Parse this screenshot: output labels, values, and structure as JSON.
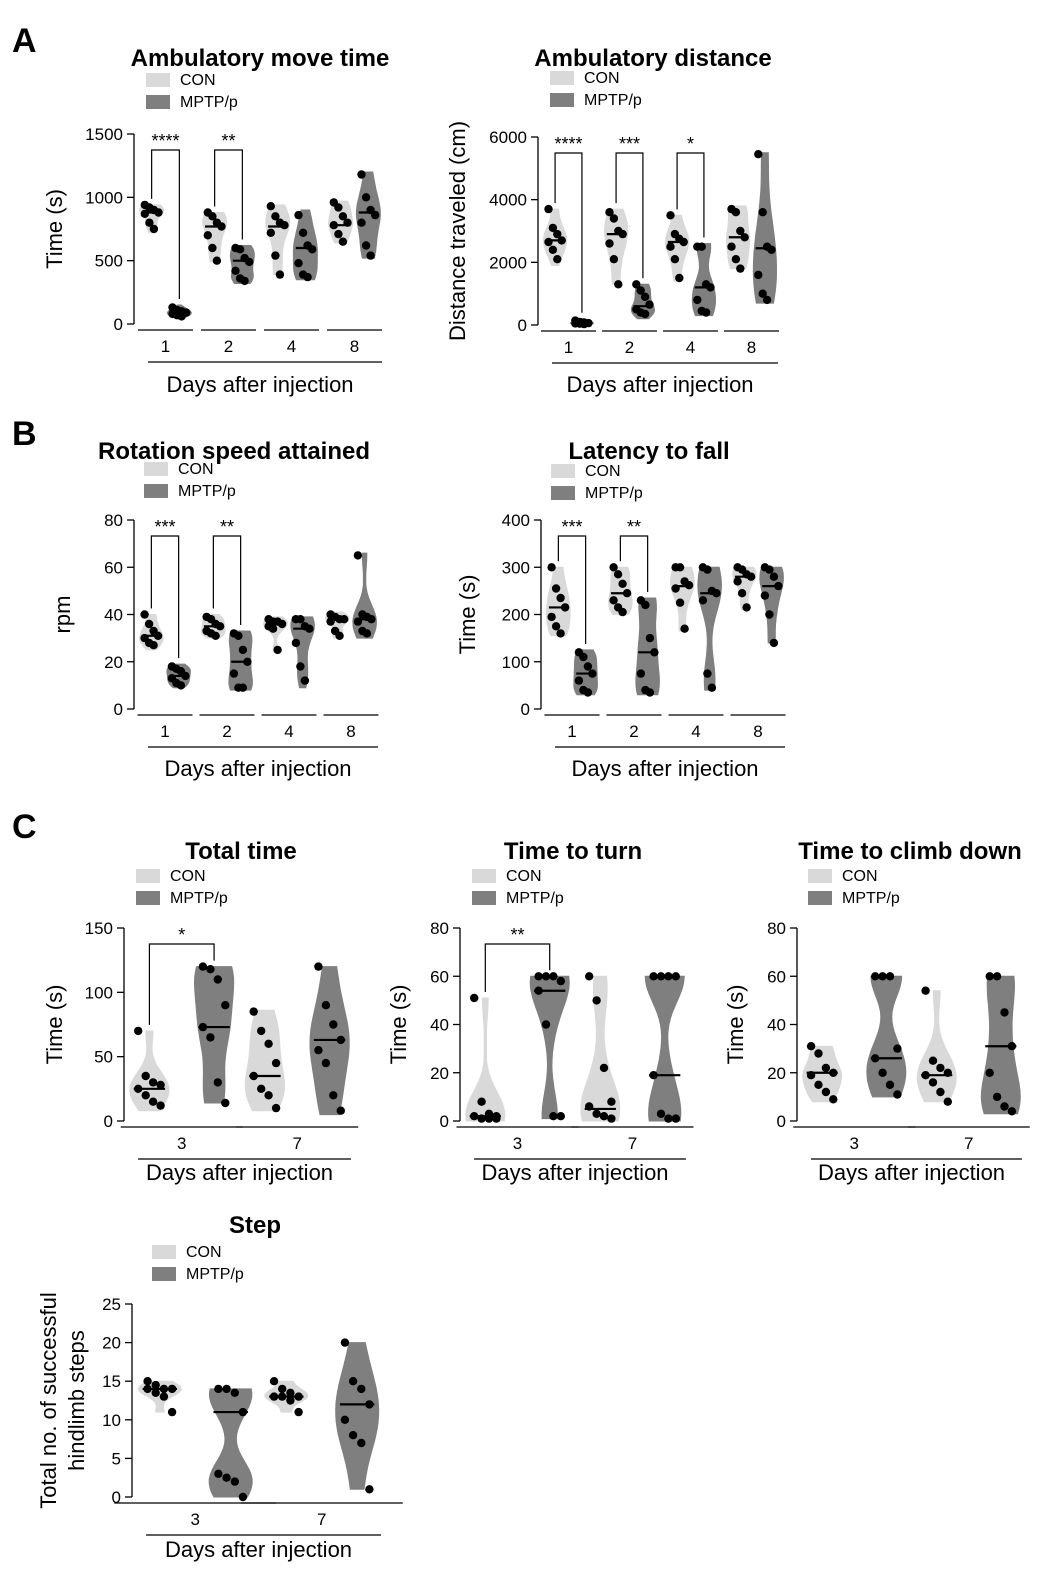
{
  "panel_labels": [
    "A",
    "B",
    "C"
  ],
  "chart_data": [
    {
      "type": "violin",
      "panel": "A",
      "title": "Ambulatory move time",
      "ylabel": "Time (s)",
      "xlabel": "Days after injection",
      "categories": [
        "1",
        "2",
        "4",
        "8"
      ],
      "ylim": [
        0,
        1500
      ],
      "yticks": [
        0,
        500,
        1000,
        1500
      ],
      "legend": [
        "CON",
        "MPTP/p"
      ],
      "colors": {
        "CON": "#d9d9d9",
        "MPTP/p": "#7f7f7f"
      },
      "series": [
        {
          "name": "CON",
          "medians": [
            880,
            770,
            770,
            780
          ],
          "ranges": [
            [
              720,
              940
            ],
            [
              490,
              880
            ],
            [
              390,
              940
            ],
            [
              640,
              970
            ]
          ],
          "points": [
            [
              940,
              920,
              900,
              880,
              870,
              800,
              750
            ],
            [
              880,
              850,
              800,
              770,
              700,
              600,
              500
            ],
            [
              930,
              850,
              800,
              780,
              720,
              540,
              390
            ],
            [
              960,
              920,
              850,
              800,
              780,
              710,
              650
            ]
          ]
        },
        {
          "name": "MPTP/p",
          "medians": [
            80,
            500,
            600,
            880
          ],
          "ranges": [
            [
              40,
              150
            ],
            [
              320,
              620
            ],
            [
              350,
              900
            ],
            [
              520,
              1200
            ]
          ],
          "points": [
            [
              130,
              110,
              100,
              90,
              80,
              70,
              60
            ],
            [
              600,
              590,
              520,
              490,
              420,
              360,
              340
            ],
            [
              860,
              720,
              620,
              590,
              480,
              390,
              370
            ],
            [
              1180,
              1000,
              900,
              860,
              800,
              620,
              540
            ]
          ]
        }
      ],
      "significance": [
        {
          "category": "1",
          "label": "****"
        },
        {
          "category": "2",
          "label": "**"
        }
      ]
    },
    {
      "type": "violin",
      "panel": "A",
      "title": "Ambulatory distance",
      "ylabel": "Distance traveled (cm)",
      "xlabel": "Days after injection",
      "categories": [
        "1",
        "2",
        "4",
        "8"
      ],
      "ylim": [
        0,
        6000
      ],
      "yticks": [
        0,
        2000,
        4000,
        6000
      ],
      "legend": [
        "CON",
        "MPTP/p"
      ],
      "colors": {
        "CON": "#d9d9d9",
        "MPTP/p": "#7f7f7f"
      },
      "series": [
        {
          "name": "CON",
          "medians": [
            2700,
            2900,
            2650,
            2800
          ],
          "ranges": [
            [
              1900,
              3700
            ],
            [
              1300,
              3700
            ],
            [
              1400,
              3500
            ],
            [
              1800,
              3800
            ]
          ],
          "points": [
            [
              3700,
              3100,
              2900,
              2700,
              2650,
              2400,
              2100
            ],
            [
              3600,
              3400,
              3000,
              2900,
              2600,
              2100,
              1300
            ],
            [
              3500,
              2900,
              2750,
              2650,
              2500,
              2100,
              1500
            ],
            [
              3700,
              3600,
              3000,
              2800,
              2500,
              2100,
              1800
            ]
          ]
        },
        {
          "name": "MPTP/p",
          "medians": [
            60,
            600,
            1200,
            2450
          ],
          "ranges": [
            [
              0,
              200
            ],
            [
              200,
              1300
            ],
            [
              300,
              2600
            ],
            [
              700,
              5500
            ]
          ],
          "points": [
            [
              140,
              100,
              80,
              60,
              50,
              40,
              30
            ],
            [
              1300,
              1100,
              900,
              650,
              500,
              400,
              350
            ],
            [
              2500,
              2500,
              1300,
              1200,
              800,
              450,
              400
            ],
            [
              5450,
              3600,
              2500,
              2400,
              1600,
              1000,
              800
            ]
          ]
        }
      ],
      "significance": [
        {
          "category": "1",
          "label": "****"
        },
        {
          "category": "2",
          "label": "***"
        },
        {
          "category": "4",
          "label": "*"
        }
      ]
    },
    {
      "type": "violin",
      "panel": "B",
      "title": "Rotation speed attained",
      "ylabel": "rpm",
      "xlabel": "Days after injection",
      "categories": [
        "1",
        "2",
        "4",
        "8"
      ],
      "ylim": [
        0,
        80
      ],
      "yticks": [
        0,
        20,
        40,
        60,
        80
      ],
      "legend": [
        "CON",
        "MPTP/p"
      ],
      "colors": {
        "CON": "#d9d9d9",
        "MPTP/p": "#7f7f7f"
      },
      "series": [
        {
          "name": "CON",
          "medians": [
            31,
            35,
            36,
            38
          ],
          "ranges": [
            [
              25,
              40
            ],
            [
              30,
              40
            ],
            [
              25,
              39
            ],
            [
              30,
              41
            ]
          ],
          "points": [
            [
              40,
              36,
              33,
              31,
              30,
              28,
              27
            ],
            [
              39,
              38,
              36,
              35,
              33,
              32,
              31
            ],
            [
              38,
              37,
              37,
              36,
              35,
              34,
              25
            ],
            [
              40,
              39,
              38,
              38,
              37,
              33,
              31
            ]
          ]
        },
        {
          "name": "MPTP/p",
          "medians": [
            14,
            20,
            34,
            38
          ],
          "ranges": [
            [
              9,
              19
            ],
            [
              8,
              33
            ],
            [
              9,
              39
            ],
            [
              30,
              66
            ]
          ],
          "points": [
            [
              18,
              17,
              16,
              14,
              13,
              11,
              10
            ],
            [
              32,
              31,
              25,
              20,
              15,
              9,
              9
            ],
            [
              38,
              38,
              35,
              34,
              28,
              18,
              12
            ],
            [
              65,
              40,
              39,
              38,
              37,
              33,
              32
            ]
          ]
        }
      ],
      "significance": [
        {
          "category": "1",
          "label": "***"
        },
        {
          "category": "2",
          "label": "**"
        }
      ]
    },
    {
      "type": "violin",
      "panel": "B",
      "title": "Latency to fall",
      "ylabel": "Time (s)",
      "xlabel": "Days after injection",
      "categories": [
        "1",
        "2",
        "4",
        "8"
      ],
      "ylim": [
        0,
        400
      ],
      "yticks": [
        0,
        100,
        200,
        300,
        400
      ],
      "legend": [
        "CON",
        "MPTP/p"
      ],
      "colors": {
        "CON": "#d9d9d9",
        "MPTP/p": "#7f7f7f"
      },
      "series": [
        {
          "name": "CON",
          "medians": [
            215,
            245,
            260,
            280
          ],
          "ranges": [
            [
              155,
              300
            ],
            [
              200,
              300
            ],
            [
              165,
              300
            ],
            [
              210,
              300
            ]
          ],
          "points": [
            [
              300,
              255,
              235,
              215,
              195,
              175,
              160
            ],
            [
              300,
              285,
              265,
              245,
              230,
              215,
              205
            ],
            [
              300,
              300,
              270,
              262,
              255,
              225,
              170
            ],
            [
              300,
              295,
              285,
              280,
              270,
              245,
              215
            ]
          ]
        },
        {
          "name": "MPTP/p",
          "medians": [
            75,
            120,
            245,
            260
          ],
          "ranges": [
            [
              30,
              125
            ],
            [
              30,
              235
            ],
            [
              40,
              300
            ],
            [
              140,
              300
            ]
          ],
          "points": [
            [
              120,
              110,
              90,
              75,
              60,
              40,
              35
            ],
            [
              230,
              220,
              150,
              120,
              75,
              40,
              35
            ],
            [
              300,
              295,
              250,
              245,
              230,
              75,
              45
            ],
            [
              300,
              295,
              280,
              260,
              240,
              200,
              140
            ]
          ]
        }
      ],
      "significance": [
        {
          "category": "1",
          "label": "***"
        },
        {
          "category": "2",
          "label": "**"
        }
      ]
    },
    {
      "type": "violin",
      "panel": "C",
      "title": "Total time",
      "ylabel": "Time (s)",
      "xlabel": "Days after injection",
      "categories": [
        "3",
        "7"
      ],
      "ylim": [
        0,
        150
      ],
      "yticks": [
        0,
        50,
        100,
        150
      ],
      "legend": [
        "CON",
        "MPTP/p"
      ],
      "colors": {
        "CON": "#d9d9d9",
        "MPTP/p": "#7f7f7f"
      },
      "series": [
        {
          "name": "CON",
          "medians": [
            25,
            35
          ],
          "ranges": [
            [
              8,
              70
            ],
            [
              8,
              86
            ]
          ],
          "points": [
            [
              70,
              35,
              30,
              28,
              25,
              20,
              15,
              12
            ],
            [
              85,
              70,
              60,
              45,
              35,
              25,
              20,
              10
            ]
          ]
        },
        {
          "name": "MPTP/p",
          "medians": [
            73,
            63
          ],
          "ranges": [
            [
              14,
              120
            ],
            [
              5,
              120
            ]
          ],
          "points": [
            [
              120,
              118,
              110,
              90,
              73,
              65,
              30,
              14
            ],
            [
              120,
              90,
              75,
              63,
              55,
              45,
              20,
              8
            ]
          ]
        }
      ],
      "significance": [
        {
          "category": "3",
          "label": "*"
        }
      ]
    },
    {
      "type": "violin",
      "panel": "C",
      "title": "Time to turn",
      "ylabel": "Time (s)",
      "xlabel": "Days after injection",
      "categories": [
        "3",
        "7"
      ],
      "ylim": [
        0,
        80
      ],
      "yticks": [
        0,
        20,
        40,
        60,
        80
      ],
      "legend": [
        "CON",
        "MPTP/p"
      ],
      "colors": {
        "CON": "#d9d9d9",
        "MPTP/p": "#7f7f7f"
      },
      "series": [
        {
          "name": "CON",
          "medians": [
            2,
            5
          ],
          "ranges": [
            [
              0,
              51
            ],
            [
              0,
              60
            ]
          ],
          "points": [
            [
              51,
              8,
              3,
              2,
              2,
              1,
              1,
              1
            ],
            [
              60,
              50,
              22,
              8,
              6,
              3,
              2,
              1
            ]
          ]
        },
        {
          "name": "MPTP/p",
          "medians": [
            54,
            19
          ],
          "ranges": [
            [
              1,
              60
            ],
            [
              0,
              60
            ]
          ],
          "points": [
            [
              60,
              60,
              60,
              58,
              54,
              40,
              2,
              2
            ],
            [
              60,
              60,
              60,
              60,
              19,
              3,
              1,
              1
            ]
          ]
        }
      ],
      "significance": [
        {
          "category": "3",
          "label": "**"
        }
      ]
    },
    {
      "type": "violin",
      "panel": "C",
      "title": "Time to climb down",
      "ylabel": "Time (s)",
      "xlabel": "Days after injection",
      "categories": [
        "3",
        "7"
      ],
      "ylim": [
        0,
        80
      ],
      "yticks": [
        0,
        20,
        40,
        60,
        80
      ],
      "legend": [
        "CON",
        "MPTP/p"
      ],
      "colors": {
        "CON": "#d9d9d9",
        "MPTP/p": "#7f7f7f"
      },
      "series": [
        {
          "name": "CON",
          "medians": [
            20,
            19
          ],
          "ranges": [
            [
              8,
              31
            ],
            [
              8,
              54
            ]
          ],
          "points": [
            [
              31,
              28,
              22,
              20,
              19,
              15,
              12,
              9
            ],
            [
              54,
              25,
              22,
              20,
              19,
              16,
              12,
              8
            ]
          ]
        },
        {
          "name": "MPTP/p",
          "medians": [
            26,
            31
          ],
          "ranges": [
            [
              10,
              60
            ],
            [
              3,
              60
            ]
          ],
          "points": [
            [
              60,
              60,
              60,
              30,
              26,
              20,
              15,
              11
            ],
            [
              60,
              60,
              45,
              31,
              20,
              10,
              6,
              4
            ]
          ]
        }
      ],
      "significance": []
    },
    {
      "type": "violin",
      "panel": "C",
      "title": "Step",
      "ylabel": "Total no. of successful hindlimb steps",
      "ylabel_lines": [
        "Total no. of successful",
        "hindlimb steps"
      ],
      "xlabel": "Days after injection",
      "categories": [
        "3",
        "7"
      ],
      "ylim": [
        0,
        25
      ],
      "yticks": [
        0,
        5,
        10,
        15,
        20,
        25
      ],
      "legend": [
        "CON",
        "MPTP/p"
      ],
      "colors": {
        "CON": "#d9d9d9",
        "MPTP/p": "#7f7f7f"
      },
      "series": [
        {
          "name": "CON",
          "medians": [
            14,
            13
          ],
          "ranges": [
            [
              11,
              15
            ],
            [
              11,
              15
            ]
          ],
          "points": [
            [
              15,
              14.5,
              14,
              14,
              14,
              13.5,
              13,
              11
            ],
            [
              15,
              14,
              13.5,
              13,
              13,
              13,
              12.5,
              11
            ]
          ]
        },
        {
          "name": "MPTP/p",
          "medians": [
            11,
            12
          ],
          "ranges": [
            [
              0,
              14
            ],
            [
              1,
              20
            ]
          ],
          "points": [
            [
              14,
              14,
              13.5,
              11,
              3,
              2.5,
              2,
              0
            ],
            [
              20,
              15,
              14,
              12,
              10,
              8,
              7,
              1
            ]
          ]
        }
      ],
      "significance": []
    }
  ]
}
